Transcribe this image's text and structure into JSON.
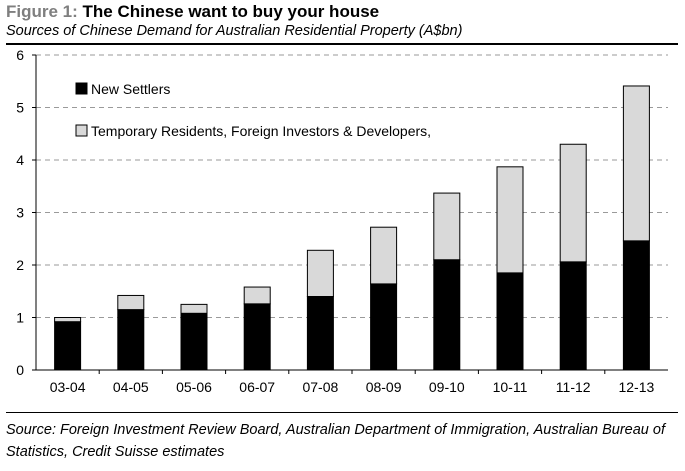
{
  "figure": {
    "label": "Figure 1:",
    "title": "The Chinese want to buy your house",
    "subtitle": "Sources of Chinese Demand for Australian Residential Property (A$bn)",
    "source": "Source: Foreign Investment Review Board, Australian Department of Immigration, Australian Bureau of Statistics, Credit Suisse estimates"
  },
  "colors": {
    "new_settlers": "#000000",
    "temporary": "#d9d9d9",
    "grid": "#9a9a9a"
  },
  "chart_data": {
    "type": "bar",
    "stacked": true,
    "title": "The Chinese want to buy your house",
    "xlabel": "",
    "ylabel": "A$bn",
    "ylim": [
      0,
      6
    ],
    "yticks": [
      "0",
      "1",
      "2",
      "3",
      "4",
      "5",
      "6"
    ],
    "grid": true,
    "legend_position": "top-left",
    "categories": [
      "03-04",
      "04-05",
      "05-06",
      "06-07",
      "07-08",
      "08-09",
      "09-10",
      "10-11",
      "11-12",
      "12-13"
    ],
    "series": [
      {
        "name": "New Settlers",
        "values": [
          0.92,
          1.15,
          1.08,
          1.26,
          1.4,
          1.64,
          2.1,
          1.85,
          2.06,
          2.46
        ]
      },
      {
        "name": "Temporary Residents, Foreign Investors & Developers,",
        "values": [
          0.08,
          0.27,
          0.17,
          0.32,
          0.88,
          1.08,
          1.27,
          2.02,
          2.24,
          2.95
        ]
      }
    ]
  }
}
